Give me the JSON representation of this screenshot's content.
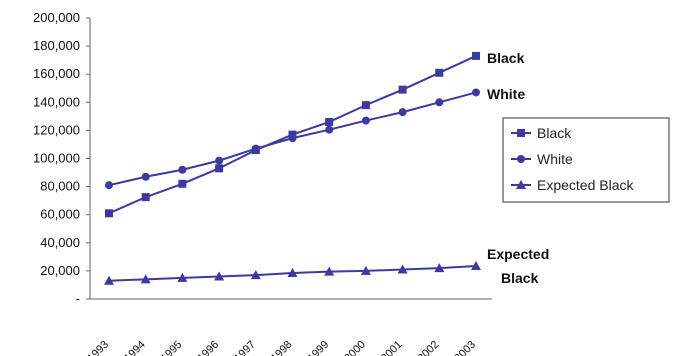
{
  "chart_data": {
    "type": "line",
    "title": "",
    "xlabel": "",
    "ylabel": "",
    "x": [
      "1993",
      "1994",
      "1995",
      "1996",
      "1997",
      "1998",
      "1999",
      "2000",
      "2001",
      "2002",
      "2003"
    ],
    "ylim": [
      0,
      200000
    ],
    "yticks": [
      0,
      20000,
      40000,
      60000,
      80000,
      100000,
      120000,
      140000,
      160000,
      180000,
      200000
    ],
    "ytick_labels": [
      "-",
      "20,000",
      "40,000",
      "60,000",
      "80,000",
      "100,000",
      "120,000",
      "140,000",
      "160,000",
      "180,000",
      "200,000"
    ],
    "grid": false,
    "legend_position": "right",
    "line_color": "#3b3aa0",
    "series": [
      {
        "name": "Black",
        "marker": "square",
        "values": [
          61000,
          72500,
          82000,
          93000,
          106000,
          117000,
          126000,
          138000,
          149000,
          161000,
          173000
        ]
      },
      {
        "name": "White",
        "marker": "circle",
        "values": [
          81000,
          87000,
          92000,
          98500,
          107000,
          114500,
          120500,
          127000,
          133000,
          140000,
          147000
        ]
      },
      {
        "name": "Expected Black",
        "marker": "triangle",
        "values": [
          13000,
          14000,
          15000,
          16000,
          17000,
          18500,
          19500,
          20000,
          21000,
          22000,
          23500
        ]
      }
    ],
    "end_labels": {
      "black": "Black",
      "white": "White",
      "expected_line1": "Expected",
      "expected_line2": "Black"
    }
  }
}
